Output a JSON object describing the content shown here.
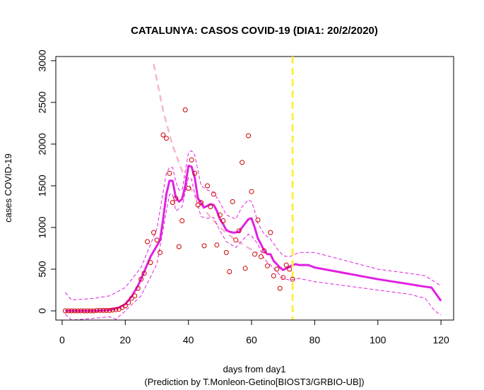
{
  "chart_data": {
    "type": "scatter",
    "title": "CATALUNYA: CASOS COVID-19 (DIA1: 20/2/2020)",
    "xlabel": "days from day1",
    "ylabel": "cases COVID-19",
    "caption": "(Prediction by T.Monleon-Getino[BIOST3/GRBIO-UB])",
    "xlim": [
      -2,
      124
    ],
    "ylim": [
      -110,
      3050
    ],
    "xticks": [
      0,
      20,
      40,
      60,
      80,
      100,
      120
    ],
    "yticks": [
      0,
      500,
      1000,
      1500,
      2000,
      2500,
      3000
    ],
    "grid": false,
    "colors": {
      "points": "#cc0000",
      "smooth": "#e020e0",
      "band": "#e020e0",
      "trend": "#f4b8c8",
      "vline": "#ffee44"
    },
    "vline_x": 73,
    "series": [
      {
        "kind": "observed",
        "x": [
          1,
          2,
          3,
          4,
          5,
          6,
          7,
          8,
          9,
          10,
          11,
          12,
          13,
          14,
          15,
          16,
          17,
          18,
          19,
          20,
          21,
          22,
          23,
          24,
          25,
          26,
          27,
          28,
          29,
          30,
          31,
          32,
          33,
          34,
          35,
          36,
          37,
          38,
          39,
          40,
          41,
          42,
          43,
          44,
          45,
          46,
          47,
          48,
          49,
          50,
          51,
          52,
          53,
          54,
          55,
          56,
          57,
          58,
          59,
          60,
          61,
          62,
          63,
          64,
          65,
          66,
          67,
          68,
          69,
          70,
          71,
          72,
          73
        ],
        "y": [
          0,
          0,
          0,
          0,
          0,
          0,
          0,
          0,
          0,
          0,
          5,
          5,
          5,
          5,
          5,
          10,
          15,
          20,
          40,
          60,
          100,
          150,
          180,
          270,
          380,
          450,
          830,
          580,
          940,
          850,
          700,
          2110,
          2070,
          1650,
          1300,
          1350,
          770,
          1080,
          2410,
          1470,
          1810,
          1650,
          1270,
          1300,
          780,
          1500,
          1250,
          1400,
          790,
          1150,
          1080,
          700,
          470,
          1310,
          850,
          960,
          1780,
          510,
          2100,
          1430,
          680,
          1090,
          650,
          720,
          540,
          940,
          420,
          500,
          270,
          400,
          550,
          500,
          380
        ]
      },
      {
        "kind": "smooth",
        "x": [
          1,
          5,
          10,
          15,
          18,
          20,
          22,
          24,
          26,
          28,
          30,
          31,
          32,
          33,
          34,
          35,
          36,
          37,
          38,
          39,
          40,
          41,
          42,
          43,
          44,
          45,
          46,
          47,
          48,
          49,
          50,
          51,
          52,
          53,
          54,
          55,
          56,
          57,
          58,
          59,
          60,
          61,
          62,
          63,
          64,
          65,
          66,
          67,
          68,
          69,
          70,
          71,
          72,
          73,
          74,
          75,
          78,
          80,
          90,
          100,
          110,
          115,
          117,
          120
        ],
        "y": [
          0,
          0,
          0,
          10,
          40,
          80,
          170,
          300,
          470,
          650,
          780,
          850,
          1100,
          1400,
          1560,
          1560,
          1360,
          1310,
          1340,
          1500,
          1740,
          1730,
          1600,
          1350,
          1300,
          1240,
          1260,
          1280,
          1270,
          1200,
          1100,
          1040,
          970,
          950,
          940,
          940,
          950,
          1000,
          1050,
          1100,
          1110,
          1000,
          870,
          800,
          720,
          680,
          680,
          600,
          560,
          520,
          490,
          510,
          530,
          550,
          560,
          550,
          550,
          520,
          450,
          380,
          320,
          290,
          280,
          120
        ]
      },
      {
        "kind": "upper-band",
        "x": [
          1,
          3,
          10,
          15,
          20,
          25,
          30,
          33,
          34,
          35,
          36,
          37,
          38,
          40,
          41,
          42,
          44,
          46,
          48,
          50,
          52,
          55,
          57,
          59,
          60,
          61,
          62,
          64,
          66,
          68,
          70,
          72,
          75,
          80,
          90,
          100,
          110,
          115,
          120
        ],
        "y": [
          220,
          130,
          150,
          180,
          280,
          520,
          980,
          1650,
          1720,
          1720,
          1550,
          1450,
          1450,
          1900,
          1920,
          1870,
          1500,
          1450,
          1420,
          1300,
          1150,
          1100,
          1250,
          1330,
          1310,
          1200,
          1050,
          920,
          860,
          750,
          660,
          650,
          700,
          700,
          600,
          500,
          450,
          420,
          300
        ]
      },
      {
        "kind": "lower-band",
        "x": [
          1,
          3,
          10,
          15,
          17,
          20,
          25,
          30,
          34,
          35,
          36,
          38,
          40,
          41,
          42,
          44,
          46,
          48,
          50,
          52,
          55,
          57,
          59,
          60,
          62,
          64,
          66,
          68,
          70,
          72,
          75,
          80,
          90,
          100,
          110,
          115,
          118,
          120
        ],
        "y": [
          -40,
          -110,
          -90,
          -70,
          -100,
          0,
          180,
          560,
          1400,
          1400,
          1200,
          1250,
          1600,
          1580,
          1400,
          1130,
          1110,
          1120,
          960,
          830,
          760,
          840,
          920,
          900,
          800,
          620,
          550,
          470,
          390,
          370,
          390,
          350,
          300,
          250,
          200,
          150,
          0,
          -50
        ]
      },
      {
        "kind": "trend",
        "x": [
          29,
          32,
          35,
          38,
          41,
          44,
          47,
          50,
          53,
          56,
          59,
          62
        ],
        "y": [
          2960,
          2400,
          1980,
          1680,
          1450,
          1270,
          1120,
          1000,
          905,
          825,
          755,
          695
        ]
      }
    ]
  }
}
